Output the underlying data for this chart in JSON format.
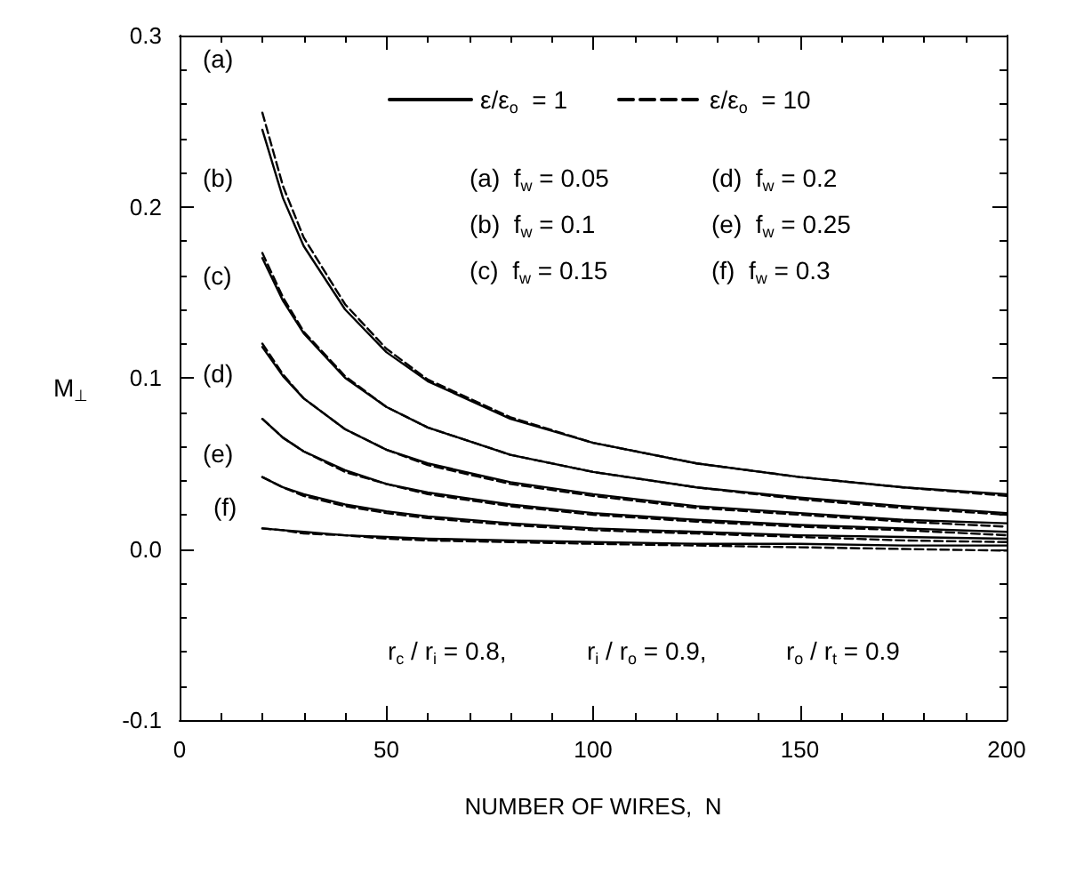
{
  "chart_data": {
    "type": "line",
    "xlabel": "NUMBER OF WIRES,  N",
    "ylabel": "M$_{⊥}$",
    "x": [
      20,
      25,
      30,
      40,
      50,
      60,
      80,
      100,
      125,
      150,
      175,
      200
    ],
    "xlim": [
      0,
      200
    ],
    "xticks": [
      0,
      50,
      100,
      150,
      200
    ],
    "ylim": [
      -0.1,
      0.3
    ],
    "yticks": [
      -0.1,
      {
        "value": 0,
        "label": "0.0"
      },
      0.1,
      0.2,
      0.3
    ],
    "grid": false,
    "legend": "top right",
    "marker": "none",
    "series": [
      {
        "name": "ε/ε$_{o}$  = 1",
        "color": "#000000",
        "line_style": "solid",
        "values": [
          0.245,
          0.205,
          0.177,
          0.14,
          0.115,
          0.098,
          0.076,
          0.062,
          0.05,
          0.042,
          0.036,
          0.032
        ]
      },
      {
        "name": "ε/ε$_{o}$  = 10",
        "color": "#000000",
        "line_style": "dashed",
        "values": [
          0.255,
          0.212,
          0.182,
          0.143,
          0.117,
          0.099,
          0.077,
          0.062,
          0.05,
          0.042,
          0.036,
          0.031
        ]
      },
      {
        "color": "#000000",
        "line_style": "solid",
        "values": [
          0.17,
          0.145,
          0.126,
          0.1,
          0.083,
          0.071,
          0.055,
          0.045,
          0.036,
          0.03,
          0.025,
          0.021
        ]
      },
      {
        "color": "#000000",
        "line_style": "dashed",
        "values": [
          0.173,
          0.147,
          0.127,
          0.101,
          0.083,
          0.071,
          0.055,
          0.045,
          0.036,
          0.029,
          0.024,
          0.02
        ]
      },
      {
        "color": "#000000",
        "line_style": "solid",
        "values": [
          0.118,
          0.101,
          0.088,
          0.07,
          0.058,
          0.05,
          0.039,
          0.032,
          0.025,
          0.021,
          0.017,
          0.015
        ]
      },
      {
        "color": "#000000",
        "line_style": "dashed",
        "values": [
          0.12,
          0.102,
          0.088,
          0.07,
          0.058,
          0.049,
          0.038,
          0.031,
          0.024,
          0.02,
          0.016,
          0.013
        ]
      },
      {
        "color": "#000000",
        "line_style": "solid",
        "values": [
          0.076,
          0.065,
          0.057,
          0.046,
          0.038,
          0.033,
          0.026,
          0.021,
          0.017,
          0.014,
          0.012,
          0.01
        ]
      },
      {
        "color": "#000000",
        "line_style": "dashed",
        "values": [
          0.076,
          0.065,
          0.057,
          0.045,
          0.038,
          0.032,
          0.025,
          0.02,
          0.016,
          0.013,
          0.011,
          0.008
        ]
      },
      {
        "color": "#000000",
        "line_style": "solid",
        "values": [
          0.042,
          0.036,
          0.032,
          0.026,
          0.022,
          0.019,
          0.015,
          0.012,
          0.01,
          0.008,
          0.007,
          0.006
        ]
      },
      {
        "color": "#000000",
        "line_style": "dashed",
        "values": [
          0.042,
          0.036,
          0.031,
          0.025,
          0.021,
          0.018,
          0.014,
          0.011,
          0.009,
          0.007,
          0.005,
          0.004
        ]
      },
      {
        "color": "#000000",
        "line_style": "solid",
        "values": [
          0.012,
          0.011,
          0.01,
          0.008,
          0.007,
          0.006,
          0.005,
          0.004,
          0.003,
          0.003,
          0.002,
          0.002
        ]
      },
      {
        "color": "#000000",
        "line_style": "dashed",
        "values": [
          0.012,
          0.011,
          0.009,
          0.008,
          0.006,
          0.005,
          0.004,
          0.003,
          0.002,
          0.001,
          0.0,
          -0.001
        ]
      }
    ],
    "annotations": [
      "(a)",
      "(b)",
      "(c)",
      "(d)",
      "(e)",
      "(f)",
      "(a)  f$_{w}$ = 0.05",
      "(b)  f$_{w}$ = 0.1",
      "(c)  f$_{w}$ = 0.15",
      "(d)  f$_{w}$ = 0.2",
      "(e)  f$_{w}$ = 0.25",
      "(f)  f$_{w}$ = 0.3",
      "r$_{c}$ / r$_{i}$ = 0.8,",
      "r$_{i}$ / r$_{o}$ = 0.9,",
      "r$_{o}$ / r$_{t}$ = 0.9"
    ]
  }
}
